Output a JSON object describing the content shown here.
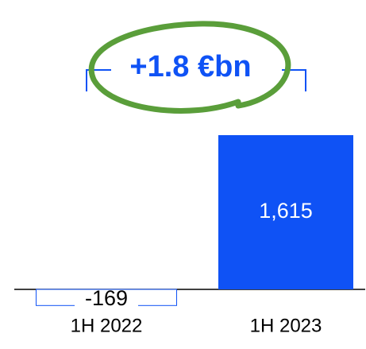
{
  "chart_data": {
    "type": "bar",
    "annotation": "+1.8 €bn",
    "categories": [
      "1H 2022",
      "1H 2023"
    ],
    "values": [
      -169,
      1615
    ],
    "value_labels": [
      "-169",
      "1,615"
    ],
    "color": "#0f52f5"
  }
}
